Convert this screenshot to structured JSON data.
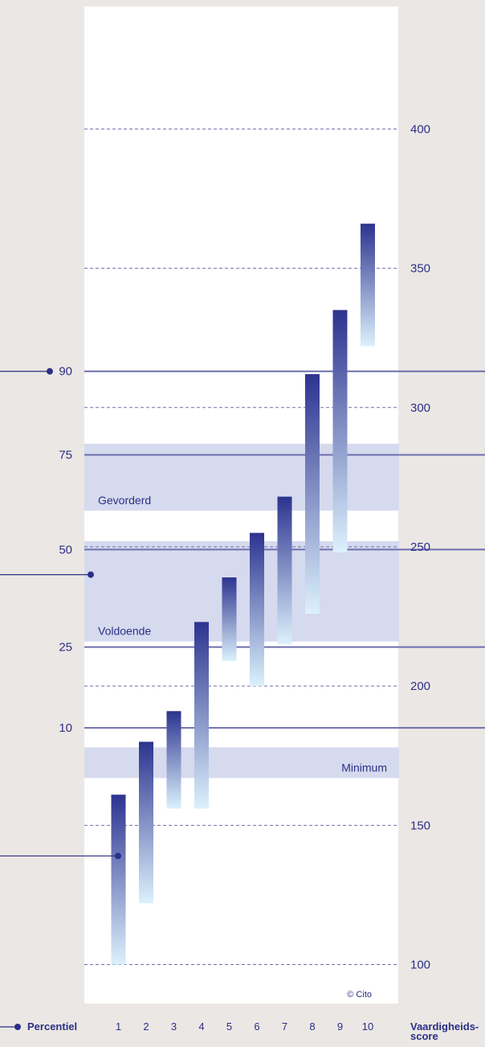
{
  "chart_data": {
    "type": "bar",
    "subtype": "floating-range",
    "categories": [
      "1",
      "2",
      "3",
      "4",
      "5",
      "6",
      "7",
      "8",
      "9",
      "10"
    ],
    "ranges": [
      {
        "low": 100,
        "high": 161
      },
      {
        "low": 122,
        "high": 180
      },
      {
        "low": 156,
        "high": 191
      },
      {
        "low": 156,
        "high": 223
      },
      {
        "low": 209,
        "high": 239
      },
      {
        "low": 200,
        "high": 255
      },
      {
        "low": 215,
        "high": 268
      },
      {
        "low": 226,
        "high": 312
      },
      {
        "low": 248,
        "high": 335
      },
      {
        "low": 322,
        "high": 366
      }
    ],
    "y_axis": {
      "label": "Vaardigheids-\nscore",
      "ylim": [
        86,
        444
      ],
      "ticks": [
        100,
        150,
        200,
        250,
        300,
        350,
        400
      ],
      "gridlines": "dashed"
    },
    "percentiles": {
      "label": "Percentiel",
      "lines": [
        {
          "p": "90",
          "score": 313
        },
        {
          "p": "75",
          "score": 283
        },
        {
          "p": "50",
          "score": 249
        },
        {
          "p": "25",
          "score": 214
        },
        {
          "p": "10",
          "score": 185
        }
      ]
    },
    "bands": [
      {
        "label": "Gevorderd",
        "from": 263,
        "to": 287
      },
      {
        "label": "Voldoende",
        "from": 216,
        "to": 252
      },
      {
        "label": "Minimum",
        "from": 167,
        "to": 178
      }
    ],
    "left_markers": [
      {
        "score": 313
      },
      {
        "score": 240
      },
      {
        "score": 139
      }
    ],
    "copyright": "© Cito"
  },
  "colors": {
    "background": "#ebe7e4",
    "panel": "#ffffff",
    "band": "#d5daee",
    "line": "#6d6fae",
    "text": "#2b2f86",
    "bar_top": "#2c338f",
    "bar_bottom": "#dcf1fc"
  }
}
